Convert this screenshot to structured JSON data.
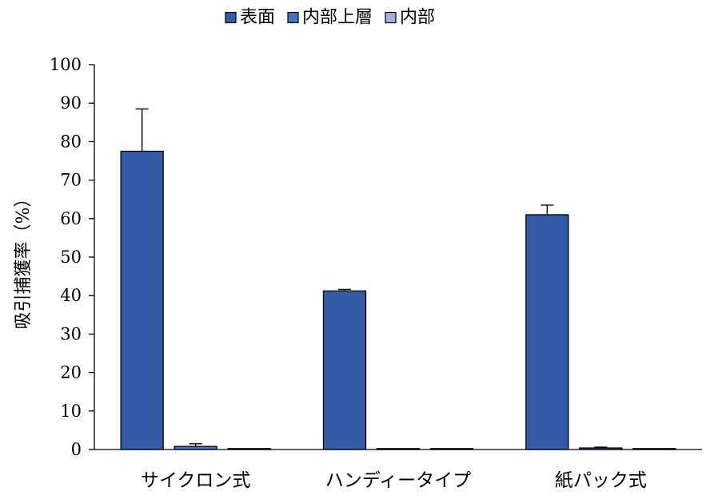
{
  "chart_data": {
    "type": "bar",
    "title": "",
    "xlabel": "",
    "ylabel": "吸引捕獲率（%）",
    "ylim": [
      0,
      100
    ],
    "yticks": [
      0,
      10,
      20,
      30,
      40,
      50,
      60,
      70,
      80,
      90,
      100
    ],
    "grid": false,
    "legend_position": "top",
    "categories": [
      "サイクロン式",
      "ハンディータイプ",
      "紙パック式"
    ],
    "series": [
      {
        "name": "表面",
        "values": [
          77.5,
          41.2,
          61.0
        ],
        "errors": [
          11.0,
          0.4,
          2.5
        ],
        "color": "#335BA6"
      },
      {
        "name": "内部上層",
        "values": [
          0.8,
          0.2,
          0.4
        ],
        "errors": [
          0.7,
          0.0,
          0.2
        ],
        "color": "#4472C4"
      },
      {
        "name": "内部",
        "values": [
          0.2,
          0.1,
          0.1
        ],
        "errors": [
          0.0,
          0.0,
          0.0
        ],
        "color": "#A5AFD8"
      }
    ]
  }
}
